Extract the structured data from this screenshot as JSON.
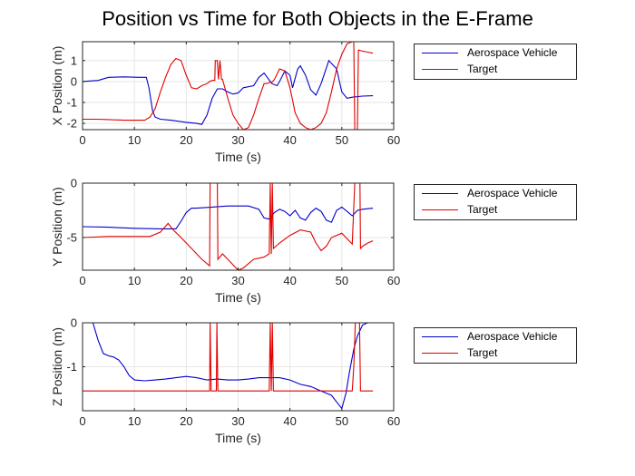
{
  "figure": {
    "title": "Position vs Time for Both Objects in the E-Frame",
    "colors": {
      "series1": "#0000cc",
      "series2": "#e00000",
      "grid": "#e6e6e6",
      "axis": "#262626"
    }
  },
  "chart_data": [
    {
      "type": "line",
      "xlabel": "Time (s)",
      "ylabel": "X Position (m)",
      "xlim": [
        0,
        60
      ],
      "ylim": [
        -2.3,
        1.9
      ],
      "xticks": [
        0,
        10,
        20,
        30,
        40,
        50,
        60
      ],
      "yticks": [
        -2,
        -1,
        0,
        1
      ],
      "grid": true,
      "legend_position": "right",
      "series": [
        {
          "name": "Aerospace Vehicle",
          "color": "#0000cc",
          "points": [
            [
              0,
              0
            ],
            [
              3,
              0.05
            ],
            [
              5,
              0.2
            ],
            [
              8,
              0.22
            ],
            [
              11,
              0.2
            ],
            [
              12.3,
              0.2
            ],
            [
              12.8,
              -0.3
            ],
            [
              13.5,
              -1.4
            ],
            [
              14,
              -1.7
            ],
            [
              15,
              -1.8
            ],
            [
              17,
              -1.85
            ],
            [
              20,
              -1.95
            ],
            [
              22,
              -2.0
            ],
            [
              23,
              -2.05
            ],
            [
              24,
              -1.6
            ],
            [
              25,
              -0.8
            ],
            [
              26,
              -0.35
            ],
            [
              27,
              -0.35
            ],
            [
              28,
              -0.5
            ],
            [
              29,
              -0.6
            ],
            [
              30,
              -0.55
            ],
            [
              31,
              -0.3
            ],
            [
              33,
              -0.2
            ],
            [
              34,
              0.2
            ],
            [
              35,
              0.4
            ],
            [
              36.5,
              -0.1
            ],
            [
              37.5,
              -0.2
            ],
            [
              38,
              0
            ],
            [
              39,
              0.5
            ],
            [
              40,
              0.3
            ],
            [
              40.5,
              -0.3
            ],
            [
              41.5,
              0.6
            ],
            [
              42,
              0.75
            ],
            [
              43,
              0.3
            ],
            [
              44,
              -0.4
            ],
            [
              45,
              -0.65
            ],
            [
              46,
              -0.1
            ],
            [
              47.5,
              1.0
            ],
            [
              49,
              0.6
            ],
            [
              50,
              -0.5
            ],
            [
              51,
              -0.8
            ],
            [
              52,
              -0.75
            ],
            [
              54,
              -0.7
            ],
            [
              56,
              -0.68
            ]
          ]
        },
        {
          "name": "Target",
          "color": "#e00000",
          "points": [
            [
              0,
              -1.8
            ],
            [
              3,
              -1.8
            ],
            [
              5,
              -1.82
            ],
            [
              8,
              -1.85
            ],
            [
              12,
              -1.85
            ],
            [
              13,
              -1.7
            ],
            [
              14,
              -1.3
            ],
            [
              15,
              -0.5
            ],
            [
              16,
              0.2
            ],
            [
              17,
              0.8
            ],
            [
              18,
              1.1
            ],
            [
              19,
              1.0
            ],
            [
              20,
              0.3
            ],
            [
              21,
              -0.3
            ],
            [
              22,
              -0.35
            ],
            [
              23,
              -0.2
            ],
            [
              24,
              -0.1
            ],
            [
              24.5,
              0
            ],
            [
              25,
              0.05
            ],
            [
              25.5,
              0.05
            ],
            [
              25.6,
              1.0
            ],
            [
              26,
              1.0
            ],
            [
              26.2,
              0.1
            ],
            [
              26.5,
              1.0
            ],
            [
              26.8,
              0.1
            ],
            [
              27,
              0.1
            ],
            [
              28,
              -0.8
            ],
            [
              29,
              -1.6
            ],
            [
              30,
              -2.0
            ],
            [
              31,
              -2.3
            ],
            [
              32,
              -2.2
            ],
            [
              33,
              -1.6
            ],
            [
              34,
              -0.8
            ],
            [
              35,
              -0.1
            ],
            [
              35.5,
              -0.1
            ],
            [
              36,
              -0.05
            ],
            [
              36.5,
              -0.05
            ],
            [
              37,
              0.1
            ],
            [
              38,
              0.6
            ],
            [
              39,
              0.5
            ],
            [
              40,
              -0.3
            ],
            [
              41,
              -1.5
            ],
            [
              42,
              -2.0
            ],
            [
              43,
              -2.2
            ],
            [
              44,
              -2.3
            ],
            [
              45,
              -2.2
            ],
            [
              46,
              -2.0
            ],
            [
              47,
              -1.5
            ],
            [
              48,
              -0.5
            ],
            [
              49,
              0.6
            ],
            [
              50,
              1.3
            ],
            [
              51,
              1.8
            ],
            [
              52,
              1.9
            ],
            [
              52.3,
              1.9
            ],
            [
              52.5,
              -2.3
            ],
            [
              53,
              -2.3
            ],
            [
              53.2,
              1.5
            ],
            [
              54,
              1.45
            ],
            [
              55,
              1.4
            ],
            [
              56,
              1.35
            ]
          ]
        }
      ]
    },
    {
      "type": "line",
      "xlabel": "Time (s)",
      "ylabel": "Y Position (m)",
      "xlim": [
        0,
        60
      ],
      "ylim": [
        -8,
        0
      ],
      "xticks": [
        0,
        10,
        20,
        30,
        40,
        50,
        60
      ],
      "yticks": [
        -5,
        0
      ],
      "grid": true,
      "legend_position": "right",
      "series": [
        {
          "name": "Aerospace Vehicle",
          "color": "#0000cc",
          "points": [
            [
              0,
              -4.0
            ],
            [
              5,
              -4.05
            ],
            [
              10,
              -4.15
            ],
            [
              15,
              -4.2
            ],
            [
              18,
              -4.2
            ],
            [
              19,
              -3.5
            ],
            [
              20,
              -2.7
            ],
            [
              21,
              -2.3
            ],
            [
              22,
              -2.3
            ],
            [
              25,
              -2.2
            ],
            [
              28,
              -2.1
            ],
            [
              32,
              -2.1
            ],
            [
              34,
              -2.4
            ],
            [
              35,
              -3.2
            ],
            [
              36,
              -3.3
            ],
            [
              37,
              -2.7
            ],
            [
              38,
              -2.4
            ],
            [
              39,
              -2.6
            ],
            [
              40,
              -3.0
            ],
            [
              41,
              -2.5
            ],
            [
              42,
              -3.2
            ],
            [
              43,
              -3.4
            ],
            [
              44,
              -2.7
            ],
            [
              45,
              -2.3
            ],
            [
              46,
              -2.6
            ],
            [
              47,
              -3.4
            ],
            [
              48,
              -3.6
            ],
            [
              49,
              -2.5
            ],
            [
              50,
              -2.2
            ],
            [
              51,
              -2.6
            ],
            [
              52,
              -3.0
            ],
            [
              53,
              -2.5
            ],
            [
              54,
              -2.4
            ],
            [
              56,
              -2.3
            ]
          ]
        },
        {
          "name": "Target",
          "color": "#e00000",
          "points": [
            [
              0,
              -5.0
            ],
            [
              5,
              -4.9
            ],
            [
              10,
              -4.9
            ],
            [
              13,
              -4.9
            ],
            [
              15,
              -4.5
            ],
            [
              16.5,
              -3.7
            ],
            [
              17.5,
              -4.3
            ],
            [
              19,
              -5.0
            ],
            [
              21,
              -6.0
            ],
            [
              23,
              -7.0
            ],
            [
              24.5,
              -7.6
            ],
            [
              24.6,
              0
            ],
            [
              26,
              0
            ],
            [
              26.1,
              -7.0
            ],
            [
              27,
              -6.5
            ],
            [
              29,
              -7.5
            ],
            [
              30,
              -8.0
            ],
            [
              31,
              -7.8
            ],
            [
              33,
              -7.0
            ],
            [
              35,
              -6.8
            ],
            [
              36,
              -6.5
            ],
            [
              36.2,
              0
            ],
            [
              36.4,
              -6.5
            ],
            [
              36.6,
              0
            ],
            [
              36.8,
              -6.0
            ],
            [
              38,
              -5.5
            ],
            [
              40,
              -4.8
            ],
            [
              42,
              -4.3
            ],
            [
              44,
              -4.5
            ],
            [
              45,
              -5.5
            ],
            [
              46,
              -6.2
            ],
            [
              47,
              -5.8
            ],
            [
              48,
              -5.0
            ],
            [
              50,
              -4.6
            ],
            [
              52,
              -5.6
            ],
            [
              52.5,
              0
            ],
            [
              53.5,
              0
            ],
            [
              53.6,
              -6.0
            ],
            [
              54,
              -5.8
            ],
            [
              55,
              -5.5
            ],
            [
              56,
              -5.3
            ]
          ]
        }
      ]
    },
    {
      "type": "line",
      "xlabel": "Time (s)",
      "ylabel": "Z Position (m)",
      "xlim": [
        0,
        60
      ],
      "ylim": [
        -2,
        0
      ],
      "xticks": [
        0,
        10,
        20,
        30,
        40,
        50,
        60
      ],
      "yticks": [
        -1,
        0
      ],
      "grid": true,
      "legend_position": "right",
      "series": [
        {
          "name": "Aerospace Vehicle",
          "color": "#0000cc",
          "points": [
            [
              0,
              0
            ],
            [
              2,
              0
            ],
            [
              3,
              -0.4
            ],
            [
              4,
              -0.7
            ],
            [
              5,
              -0.75
            ],
            [
              6,
              -0.78
            ],
            [
              7,
              -0.85
            ],
            [
              8,
              -1.0
            ],
            [
              9,
              -1.2
            ],
            [
              10,
              -1.3
            ],
            [
              12,
              -1.32
            ],
            [
              14,
              -1.3
            ],
            [
              16,
              -1.28
            ],
            [
              18,
              -1.25
            ],
            [
              20,
              -1.22
            ],
            [
              22,
              -1.25
            ],
            [
              24,
              -1.3
            ],
            [
              26,
              -1.28
            ],
            [
              28,
              -1.3
            ],
            [
              30,
              -1.3
            ],
            [
              32,
              -1.28
            ],
            [
              34,
              -1.25
            ],
            [
              36,
              -1.25
            ],
            [
              38,
              -1.25
            ],
            [
              40,
              -1.3
            ],
            [
              42,
              -1.4
            ],
            [
              44,
              -1.45
            ],
            [
              46,
              -1.55
            ],
            [
              48,
              -1.65
            ],
            [
              49,
              -1.8
            ],
            [
              50,
              -1.95
            ],
            [
              50.8,
              -1.6
            ],
            [
              51.5,
              -1.1
            ],
            [
              52.3,
              -0.6
            ],
            [
              53,
              -0.3
            ],
            [
              54,
              -0.05
            ],
            [
              55,
              0
            ],
            [
              56,
              0
            ]
          ]
        },
        {
          "name": "Target",
          "color": "#e00000",
          "points": [
            [
              0,
              -1.55
            ],
            [
              10,
              -1.55
            ],
            [
              20,
              -1.55
            ],
            [
              24.5,
              -1.55
            ],
            [
              24.6,
              0
            ],
            [
              24.8,
              -1.55
            ],
            [
              25.8,
              -1.55
            ],
            [
              25.9,
              0
            ],
            [
              26.1,
              -1.55
            ],
            [
              30,
              -1.55
            ],
            [
              36,
              -1.55
            ],
            [
              36.2,
              0
            ],
            [
              36.4,
              -1.55
            ],
            [
              36.6,
              0
            ],
            [
              36.8,
              -1.55
            ],
            [
              40,
              -1.55
            ],
            [
              45,
              -1.55
            ],
            [
              50,
              -1.55
            ],
            [
              52,
              -1.55
            ],
            [
              52.3,
              -1.0
            ],
            [
              52.6,
              0
            ],
            [
              53.4,
              0
            ],
            [
              53.6,
              -1.55
            ],
            [
              56,
              -1.55
            ]
          ]
        }
      ]
    }
  ]
}
